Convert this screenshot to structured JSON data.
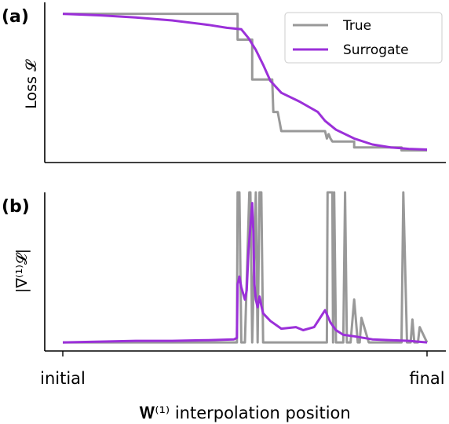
{
  "colors": {
    "true_line": "#999999",
    "surrogate_line": "#9b30d9",
    "axis": "#000000"
  },
  "chart_data": [
    {
      "panel_label": "(a)",
      "type": "line",
      "ylabel": "Loss 𝓛",
      "xlim": [
        0,
        1
      ],
      "ylim": [
        0,
        1
      ],
      "grid": false,
      "legend": {
        "placement": "top-right",
        "entries": [
          "True",
          "Surrogate"
        ]
      },
      "series": [
        {
          "name": "True",
          "color": "#999999",
          "x": [
            0.0,
            0.48,
            0.48,
            0.52,
            0.52,
            0.575,
            0.578,
            0.59,
            0.6,
            0.61,
            0.72,
            0.725,
            0.73,
            0.735,
            0.74,
            0.8,
            0.8,
            0.93,
            0.93,
            1.0
          ],
          "y": [
            0.965,
            0.965,
            0.79,
            0.79,
            0.52,
            0.52,
            0.3,
            0.3,
            0.17,
            0.17,
            0.17,
            0.12,
            0.15,
            0.12,
            0.1,
            0.1,
            0.06,
            0.06,
            0.04,
            0.04
          ]
        },
        {
          "name": "Surrogate",
          "color": "#9b30d9",
          "x": [
            0.0,
            0.1,
            0.2,
            0.3,
            0.4,
            0.45,
            0.49,
            0.51,
            0.53,
            0.55,
            0.57,
            0.6,
            0.65,
            0.7,
            0.72,
            0.75,
            0.8,
            0.85,
            0.9,
            0.95,
            1.0
          ],
          "y": [
            0.965,
            0.955,
            0.94,
            0.92,
            0.89,
            0.87,
            0.86,
            0.8,
            0.72,
            0.62,
            0.51,
            0.43,
            0.37,
            0.3,
            0.24,
            0.18,
            0.12,
            0.08,
            0.06,
            0.05,
            0.045
          ]
        }
      ]
    },
    {
      "panel_label": "(b)",
      "type": "line",
      "ylabel": "|∇⁽¹⁾𝓛|",
      "xlabel": "𝐖⁽¹⁾ interpolation position",
      "xticks": [
        {
          "value": 0,
          "label": "initial"
        },
        {
          "value": 1,
          "label": "final"
        }
      ],
      "xlim": [
        0,
        1
      ],
      "ylim": [
        0,
        1
      ],
      "grid": false,
      "series": [
        {
          "name": "True",
          "color": "#999999",
          "x": [
            0.0,
            0.478,
            0.48,
            0.485,
            0.49,
            0.5,
            0.512,
            0.515,
            0.52,
            0.53,
            0.535,
            0.54,
            0.545,
            0.55,
            0.6,
            0.7,
            0.725,
            0.727,
            0.74,
            0.742,
            0.745,
            0.75,
            0.77,
            0.775,
            0.78,
            0.79,
            0.8,
            0.81,
            0.815,
            0.82,
            0.84,
            0.85,
            0.9,
            0.93,
            0.935,
            0.945,
            0.955,
            0.96,
            0.965,
            0.975,
            0.98,
            1.0
          ],
          "y": [
            0.02,
            0.02,
            1.0,
            1.0,
            0.02,
            0.02,
            1.0,
            1.0,
            0.02,
            1.0,
            0.02,
            1.0,
            1.0,
            0.02,
            0.02,
            0.02,
            0.02,
            1.0,
            1.0,
            0.02,
            1.0,
            0.02,
            0.02,
            1.0,
            0.02,
            0.02,
            0.3,
            0.02,
            0.02,
            0.18,
            0.02,
            0.02,
            0.02,
            0.02,
            1.0,
            0.02,
            0.02,
            0.17,
            0.02,
            0.02,
            0.12,
            0.02
          ]
        },
        {
          "name": "Surrogate",
          "color": "#9b30d9",
          "x": [
            0.0,
            0.1,
            0.2,
            0.3,
            0.4,
            0.47,
            0.478,
            0.48,
            0.485,
            0.49,
            0.5,
            0.505,
            0.51,
            0.52,
            0.523,
            0.526,
            0.53,
            0.535,
            0.54,
            0.545,
            0.55,
            0.57,
            0.6,
            0.64,
            0.66,
            0.69,
            0.72,
            0.735,
            0.75,
            0.77,
            0.8,
            0.85,
            0.9,
            0.95,
            1.0
          ],
          "y": [
            0.02,
            0.025,
            0.03,
            0.03,
            0.035,
            0.04,
            0.05,
            0.4,
            0.45,
            0.38,
            0.3,
            0.36,
            0.62,
            0.93,
            0.75,
            0.4,
            0.3,
            0.25,
            0.32,
            0.26,
            0.21,
            0.16,
            0.11,
            0.12,
            0.1,
            0.12,
            0.23,
            0.15,
            0.1,
            0.07,
            0.06,
            0.04,
            0.035,
            0.03,
            0.02
          ]
        }
      ]
    }
  ]
}
